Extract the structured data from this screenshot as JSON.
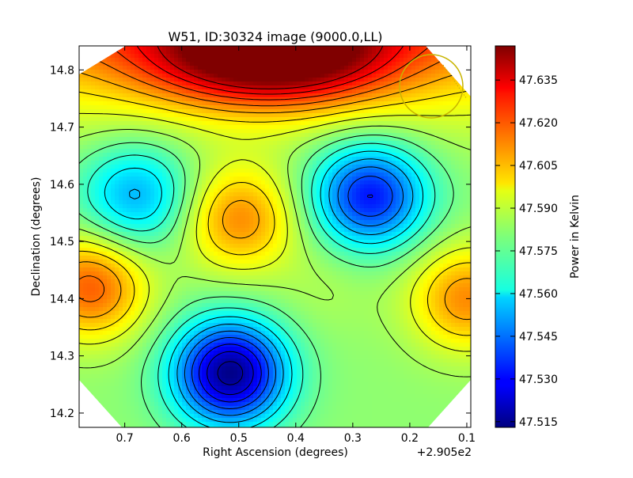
{
  "chart_data": {
    "type": "heatmap",
    "title": "W51, ID:30324 image (9000.0,LL)",
    "xlabel": "Right Ascension (degrees)",
    "ylabel": "Declination (degrees)",
    "x_offset_label": "+2.905e2",
    "x_ticks": [
      "0.7",
      "0.6",
      "0.5",
      "0.4",
      "0.3",
      "0.2",
      "0.1"
    ],
    "x_tick_values": [
      0.7,
      0.6,
      0.5,
      0.4,
      0.3,
      0.2,
      0.1
    ],
    "y_ticks": [
      "14.2",
      "14.3",
      "14.4",
      "14.5",
      "14.6",
      "14.7",
      "14.8"
    ],
    "y_tick_values": [
      14.2,
      14.3,
      14.4,
      14.5,
      14.6,
      14.7,
      14.8
    ],
    "xlim": [
      0.78,
      0.093
    ],
    "ylim": [
      14.175,
      14.842
    ],
    "colorbar": {
      "label": "Power in Kelvin",
      "ticks": [
        "47.635",
        "47.620",
        "47.605",
        "47.590",
        "47.575",
        "47.560",
        "47.545",
        "47.530",
        "47.515"
      ],
      "tick_values": [
        47.635,
        47.62,
        47.605,
        47.59,
        47.575,
        47.56,
        47.545,
        47.53,
        47.515
      ],
      "range": [
        47.513,
        47.647
      ],
      "colormap": "jet"
    },
    "features": [
      {
        "kind": "max",
        "x": 0.445,
        "y": 14.825,
        "value": 47.646
      },
      {
        "kind": "max",
        "x": 0.76,
        "y": 14.42,
        "value": 47.618
      },
      {
        "kind": "max",
        "x": 0.5,
        "y": 14.54,
        "value": 47.612
      },
      {
        "kind": "max",
        "x": 0.1,
        "y": 14.4,
        "value": 47.612
      },
      {
        "kind": "min",
        "x": 0.515,
        "y": 14.27,
        "value": 47.514
      },
      {
        "kind": "min",
        "x": 0.27,
        "y": 14.58,
        "value": 47.532
      },
      {
        "kind": "min",
        "x": 0.68,
        "y": 14.58,
        "value": 47.553
      },
      {
        "kind": "min",
        "x": 0.35,
        "y": 14.425,
        "value": 47.586
      }
    ],
    "beam_circle": {
      "x": 0.158,
      "y": 14.775,
      "color": "#c8b400"
    }
  }
}
